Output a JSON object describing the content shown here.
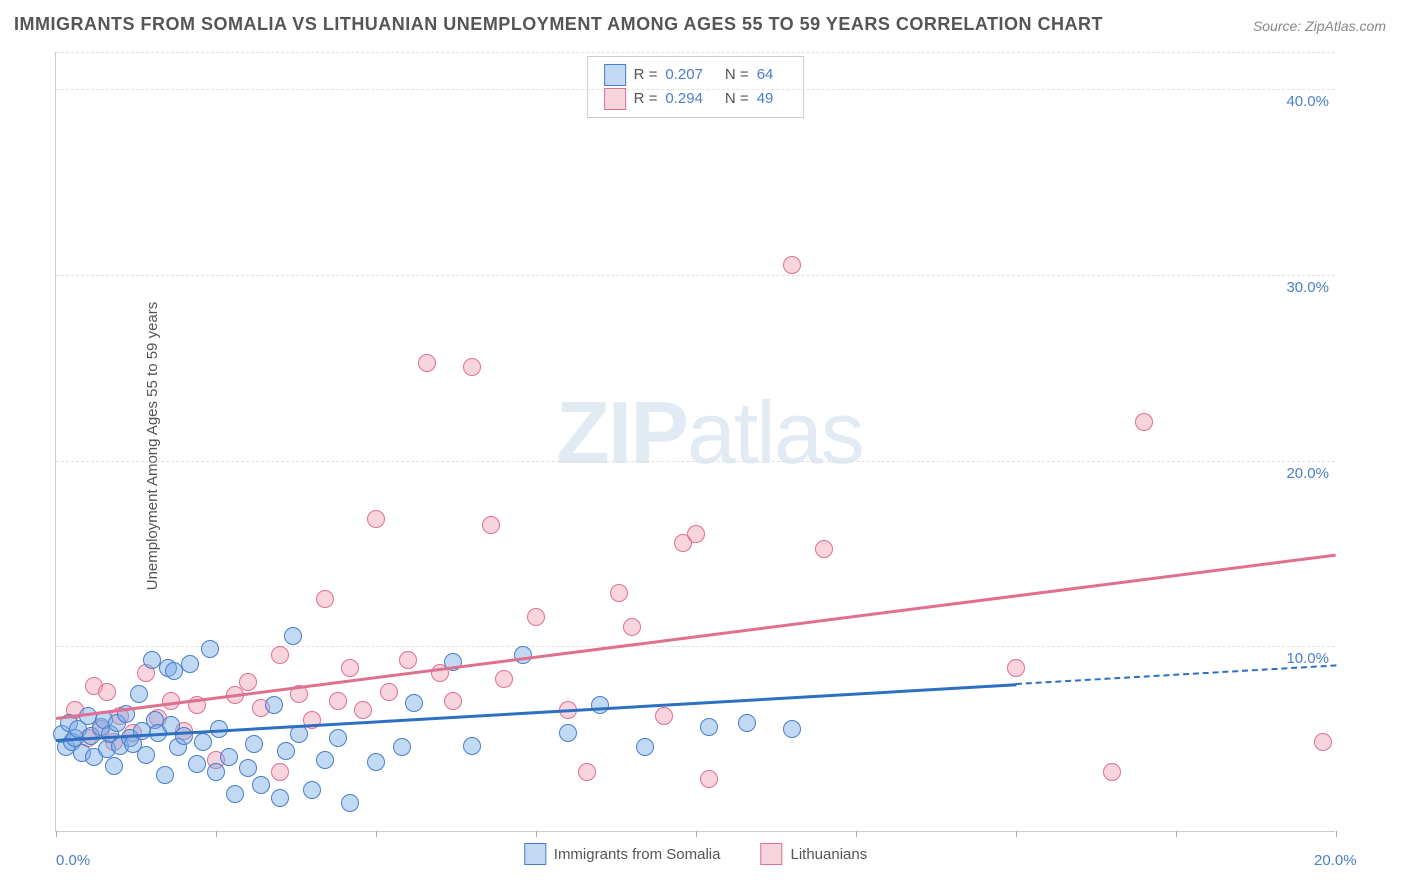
{
  "title": "IMMIGRANTS FROM SOMALIA VS LITHUANIAN UNEMPLOYMENT AMONG AGES 55 TO 59 YEARS CORRELATION CHART",
  "source": "Source: ZipAtlas.com",
  "ylabel": "Unemployment Among Ages 55 to 59 years",
  "watermark_a": "ZIP",
  "watermark_b": "atlas",
  "chart": {
    "type": "scatter-with-regression",
    "xlim": [
      0,
      20
    ],
    "ylim": [
      0,
      42
    ],
    "xtick_positions": [
      0,
      2.5,
      5,
      7.5,
      10,
      12.5,
      15,
      17.5,
      20
    ],
    "xtick_labels": {
      "0": "0.0%",
      "20": "20.0%"
    },
    "ytick_positions": [
      10,
      20,
      30,
      40
    ],
    "ytick_labels": {
      "10": "10.0%",
      "20": "20.0%",
      "30": "30.0%",
      "40": "40.0%"
    },
    "background_color": "#ffffff",
    "grid_color": "#e0e0e0",
    "axis_color": "#cccccc",
    "tick_label_color": "#4a7ec9",
    "title_color": "#555555"
  },
  "series": {
    "somalia": {
      "label": "Immigrants from Somalia",
      "fill": "rgba(120,170,230,0.45)",
      "stroke": "#4a7ec9",
      "line_color": "#2d6fc1",
      "R": "0.207",
      "N": "64",
      "regression": {
        "x0": 0,
        "y0": 5.0,
        "x1": 15,
        "y1": 8.0,
        "x1_ext": 20,
        "y1_ext": 9.0
      },
      "points": [
        [
          0.1,
          5.2
        ],
        [
          0.15,
          4.5
        ],
        [
          0.2,
          5.8
        ],
        [
          0.25,
          4.8
        ],
        [
          0.3,
          5.0
        ],
        [
          0.35,
          5.5
        ],
        [
          0.4,
          4.2
        ],
        [
          0.5,
          6.2
        ],
        [
          0.55,
          5.1
        ],
        [
          0.6,
          4.0
        ],
        [
          0.7,
          5.6
        ],
        [
          0.75,
          6.0
        ],
        [
          0.8,
          4.4
        ],
        [
          0.85,
          5.2
        ],
        [
          0.9,
          3.5
        ],
        [
          0.95,
          5.8
        ],
        [
          1.0,
          4.6
        ],
        [
          1.1,
          6.3
        ],
        [
          1.15,
          5.0
        ],
        [
          1.2,
          4.7
        ],
        [
          1.3,
          7.4
        ],
        [
          1.35,
          5.4
        ],
        [
          1.4,
          4.1
        ],
        [
          1.5,
          9.2
        ],
        [
          1.55,
          6.0
        ],
        [
          1.6,
          5.3
        ],
        [
          1.7,
          3.0
        ],
        [
          1.75,
          8.8
        ],
        [
          1.8,
          5.7
        ],
        [
          1.85,
          8.6
        ],
        [
          1.9,
          4.5
        ],
        [
          2.0,
          5.1
        ],
        [
          2.1,
          9.0
        ],
        [
          2.2,
          3.6
        ],
        [
          2.3,
          4.8
        ],
        [
          2.4,
          9.8
        ],
        [
          2.5,
          3.2
        ],
        [
          2.55,
          5.5
        ],
        [
          2.7,
          4.0
        ],
        [
          2.8,
          2.0
        ],
        [
          3.0,
          3.4
        ],
        [
          3.1,
          4.7
        ],
        [
          3.2,
          2.5
        ],
        [
          3.4,
          6.8
        ],
        [
          3.5,
          1.8
        ],
        [
          3.6,
          4.3
        ],
        [
          3.7,
          10.5
        ],
        [
          3.8,
          5.2
        ],
        [
          4.0,
          2.2
        ],
        [
          4.2,
          3.8
        ],
        [
          4.4,
          5.0
        ],
        [
          4.6,
          1.5
        ],
        [
          5.0,
          3.7
        ],
        [
          5.4,
          4.5
        ],
        [
          5.6,
          6.9
        ],
        [
          6.2,
          9.1
        ],
        [
          6.5,
          4.6
        ],
        [
          7.3,
          9.5
        ],
        [
          8.0,
          5.3
        ],
        [
          8.5,
          6.8
        ],
        [
          9.2,
          4.5
        ],
        [
          10.2,
          5.6
        ],
        [
          10.8,
          5.8
        ],
        [
          11.5,
          5.5
        ]
      ]
    },
    "lithuanians": {
      "label": "Lithuanians",
      "fill": "rgba(240,160,185,0.45)",
      "stroke": "#e0708f",
      "line_color": "#e0708f",
      "R": "0.294",
      "N": "49",
      "regression": {
        "x0": 0,
        "y0": 6.2,
        "x1": 20,
        "y1": 15.0
      },
      "points": [
        [
          0.3,
          6.5
        ],
        [
          0.5,
          5.0
        ],
        [
          0.6,
          7.8
        ],
        [
          0.7,
          5.5
        ],
        [
          0.9,
          4.8
        ],
        [
          1.0,
          6.2
        ],
        [
          1.2,
          5.3
        ],
        [
          1.4,
          8.5
        ],
        [
          1.6,
          6.1
        ],
        [
          1.8,
          7.0
        ],
        [
          2.0,
          5.4
        ],
        [
          2.2,
          6.8
        ],
        [
          2.5,
          3.8
        ],
        [
          2.8,
          7.3
        ],
        [
          3.0,
          8.0
        ],
        [
          3.2,
          6.6
        ],
        [
          3.5,
          9.5
        ],
        [
          3.8,
          7.4
        ],
        [
          4.0,
          6.0
        ],
        [
          4.2,
          12.5
        ],
        [
          4.4,
          7.0
        ],
        [
          4.6,
          8.8
        ],
        [
          4.8,
          6.5
        ],
        [
          5.0,
          16.8
        ],
        [
          5.2,
          7.5
        ],
        [
          5.5,
          9.2
        ],
        [
          5.8,
          25.2
        ],
        [
          6.0,
          8.5
        ],
        [
          6.2,
          7.0
        ],
        [
          6.5,
          25.0
        ],
        [
          6.8,
          16.5
        ],
        [
          7.0,
          8.2
        ],
        [
          7.5,
          11.5
        ],
        [
          8.0,
          6.5
        ],
        [
          8.3,
          3.2
        ],
        [
          8.8,
          12.8
        ],
        [
          9.0,
          11.0
        ],
        [
          9.5,
          6.2
        ],
        [
          9.8,
          15.5
        ],
        [
          10.0,
          16.0
        ],
        [
          10.2,
          2.8
        ],
        [
          11.5,
          30.5
        ],
        [
          12.0,
          15.2
        ],
        [
          15.0,
          8.8
        ],
        [
          16.5,
          3.2
        ],
        [
          17.0,
          22.0
        ],
        [
          19.8,
          4.8
        ],
        [
          3.5,
          3.2
        ],
        [
          0.8,
          7.5
        ]
      ]
    }
  },
  "legend_top": {
    "r_label": "R =",
    "n_label": "N ="
  }
}
